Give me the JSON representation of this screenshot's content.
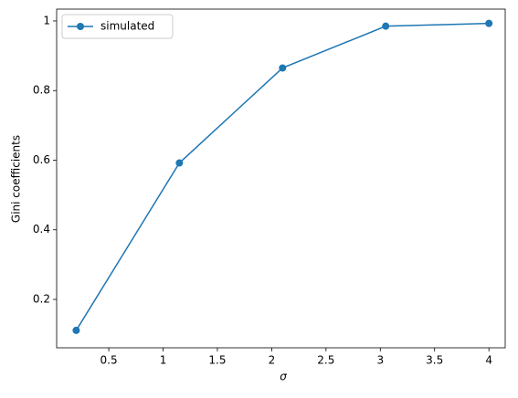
{
  "chart_data": {
    "type": "line",
    "xlabel": "σ",
    "ylabel": "Gini coefficients",
    "x": [
      0.2,
      1.15,
      2.1,
      3.05,
      4.0
    ],
    "series": [
      {
        "name": "simulated",
        "color": "#1f77b4",
        "values": [
          0.111,
          0.592,
          0.865,
          0.985,
          0.993
        ]
      }
    ],
    "xlim": [
      0.02,
      4.15
    ],
    "ylim": [
      0.061,
      1.034
    ],
    "xticks": [
      0.5,
      1.0,
      1.5,
      2.0,
      2.5,
      3.0,
      3.5,
      4.0
    ],
    "yticks": [
      0.2,
      0.4,
      0.6,
      0.8,
      1.0
    ],
    "legend": "upper left"
  }
}
